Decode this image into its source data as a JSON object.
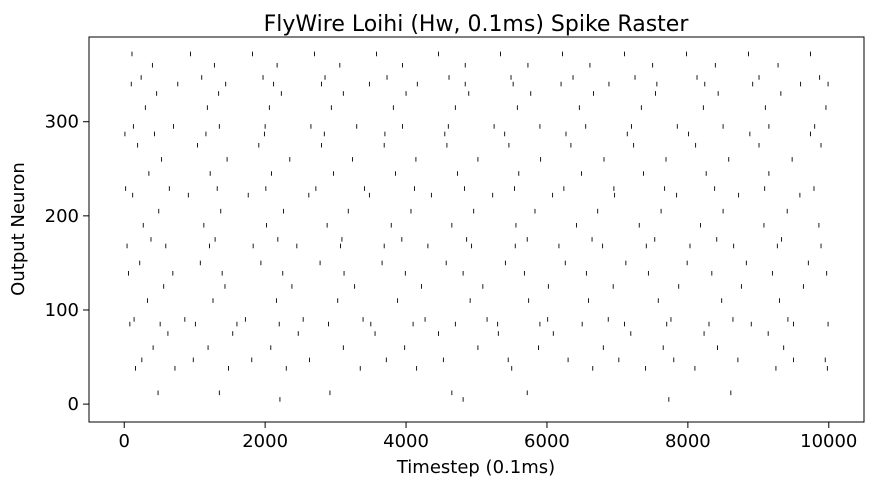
{
  "chart_data": {
    "type": "scatter",
    "subtype": "spike-raster",
    "title": "FlyWire Loihi (Hw, 0.1ms) Spike Raster",
    "xlabel": "Timestep (0.1ms)",
    "ylabel": "Output Neuron",
    "xlim": [
      -500,
      10500
    ],
    "ylim": [
      -19,
      390
    ],
    "xticks": [
      0,
      2000,
      4000,
      6000,
      8000,
      10000
    ],
    "xtick_labels": [
      "0",
      "2000",
      "4000",
      "6000",
      "8000",
      "10000"
    ],
    "yticks": [
      0,
      100,
      200,
      300
    ],
    "ytick_labels": [
      "0",
      "100",
      "200",
      "300"
    ],
    "grid": false,
    "legend": "none",
    "marker": "vertical-tick",
    "marker_color": "#000000",
    "neuron_range": [
      0,
      375
    ],
    "time_range": [
      0,
      10000
    ],
    "active_neurons": [
      {
        "neuron": 5,
        "spikes": [
          2210,
          4810,
          7730
        ]
      },
      {
        "neuron": 12,
        "spikes": [
          480,
          1350,
          2920,
          4650,
          5720,
          8610
        ]
      },
      {
        "neuron": 38,
        "spikes": [
          160,
          720,
          1480,
          2300,
          3350,
          4150,
          5500,
          6650,
          7400,
          8100,
          9250,
          9980
        ]
      },
      {
        "neuron": 47,
        "spikes": [
          250,
          980,
          1810,
          2630,
          3720,
          4530,
          5450,
          6300,
          7020,
          7800,
          8710,
          9500,
          9950
        ]
      },
      {
        "neuron": 60,
        "spikes": [
          410,
          1190,
          2080,
          3110,
          3980,
          5020,
          5880,
          6800,
          7650,
          8420,
          9360
        ]
      },
      {
        "neuron": 75,
        "spikes": [
          620,
          1540,
          2470,
          3560,
          4460,
          5310,
          6090,
          7190,
          8230,
          9140
        ]
      },
      {
        "neuron": 85,
        "spikes": [
          80,
          510,
          1010,
          1600,
          2200,
          2900,
          3500,
          4100,
          4700,
          5300,
          5900,
          6500,
          7100,
          7700,
          8300,
          8900,
          9500,
          9990
        ]
      },
      {
        "neuron": 90,
        "spikes": [
          140,
          860,
          1720,
          2540,
          3390,
          4270,
          5150,
          6010,
          6870,
          7760,
          8640,
          9420
        ]
      },
      {
        "neuron": 110,
        "spikes": [
          330,
          1260,
          2160,
          3030,
          3880,
          4910,
          5740,
          6590,
          7580,
          8480,
          9300
        ]
      },
      {
        "neuron": 125,
        "spikes": [
          560,
          1430,
          2380,
          3270,
          4220,
          5090,
          6020,
          6940,
          7870,
          8760,
          9640
        ]
      },
      {
        "neuron": 139,
        "spikes": [
          60,
          690,
          1390,
          2250,
          3120,
          3990,
          4810,
          5680,
          6560,
          7440,
          8340,
          9200,
          9970
        ]
      },
      {
        "neuron": 150,
        "spikes": [
          220,
          1080,
          1940,
          2780,
          3660,
          4570,
          5410,
          6260,
          7120,
          7990,
          8830,
          9710
        ]
      },
      {
        "neuron": 168,
        "spikes": [
          40,
          590,
          1210,
          1830,
          2450,
          3070,
          3690,
          4310,
          4930,
          5550,
          6170,
          6790,
          7410,
          8030,
          8650,
          9270,
          9890
        ]
      },
      {
        "neuron": 175,
        "spikes": [
          380,
          1290,
          2180,
          3090,
          3940,
          4860,
          5720,
          6640,
          7530,
          8410,
          9330
        ]
      },
      {
        "neuron": 190,
        "spikes": [
          270,
          1130,
          2020,
          2880,
          3790,
          4650,
          5560,
          6420,
          7310,
          8180,
          9080,
          9860
        ]
      },
      {
        "neuron": 205,
        "spikes": [
          490,
          1370,
          2260,
          3180,
          4070,
          4960,
          5830,
          6720,
          7620,
          8500,
          9410
        ]
      },
      {
        "neuron": 222,
        "spikes": [
          120,
          910,
          1760,
          2620,
          3480,
          4360,
          5230,
          6080,
          6960,
          7840,
          8720,
          9590
        ]
      },
      {
        "neuron": 229,
        "spikes": [
          20,
          640,
          1320,
          2010,
          2720,
          3410,
          4120,
          4830,
          5540,
          6240,
          6950,
          7670,
          8380,
          9090,
          9790
        ]
      },
      {
        "neuron": 245,
        "spikes": [
          350,
          1220,
          2090,
          2970,
          3850,
          4730,
          5600,
          6490,
          7370,
          8260,
          9150
        ]
      },
      {
        "neuron": 260,
        "spikes": [
          530,
          1460,
          2350,
          3240,
          4140,
          5020,
          5910,
          6810,
          7690,
          8580,
          9480
        ]
      },
      {
        "neuron": 275,
        "spikes": [
          190,
          1040,
          1910,
          2800,
          3690,
          4580,
          5460,
          6340,
          7230,
          8110,
          9010,
          9890
        ]
      },
      {
        "neuron": 287,
        "spikes": [
          10,
          430,
          1160,
          1990,
          2840,
          3700,
          4550,
          5400,
          6270,
          7140,
          8010,
          8880,
          9740
        ]
      },
      {
        "neuron": 295,
        "spikes": [
          130,
          700,
          1350,
          2000,
          2650,
          3300,
          3950,
          4600,
          5250,
          5900,
          6550,
          7200,
          7850,
          8500,
          9150,
          9800
        ]
      },
      {
        "neuron": 315,
        "spikes": [
          300,
          1180,
          2060,
          2940,
          3820,
          4700,
          5580,
          6460,
          7340,
          8220,
          9100,
          9960
        ]
      },
      {
        "neuron": 330,
        "spikes": [
          460,
          1340,
          2230,
          3110,
          4000,
          4890,
          5770,
          6660,
          7540,
          8430,
          9320
        ]
      },
      {
        "neuron": 340,
        "spikes": [
          100,
          760,
          1440,
          2120,
          2800,
          3480,
          4160,
          4840,
          5520,
          6200,
          6880,
          7560,
          8240,
          8920,
          9600,
          9990
        ]
      },
      {
        "neuron": 347,
        "spikes": [
          240,
          1100,
          1970,
          2850,
          3730,
          4610,
          5490,
          6370,
          7250,
          8130,
          9010,
          9870
        ]
      },
      {
        "neuron": 360,
        "spikes": [
          400,
          1280,
          2170,
          3060,
          3950,
          4840,
          5730,
          6610,
          7500,
          8390,
          9280
        ]
      },
      {
        "neuron": 372,
        "spikes": [
          110,
          940,
          1820,
          2700,
          3580,
          4460,
          5340,
          6220,
          7100,
          7980,
          8860,
          9740
        ]
      }
    ]
  }
}
